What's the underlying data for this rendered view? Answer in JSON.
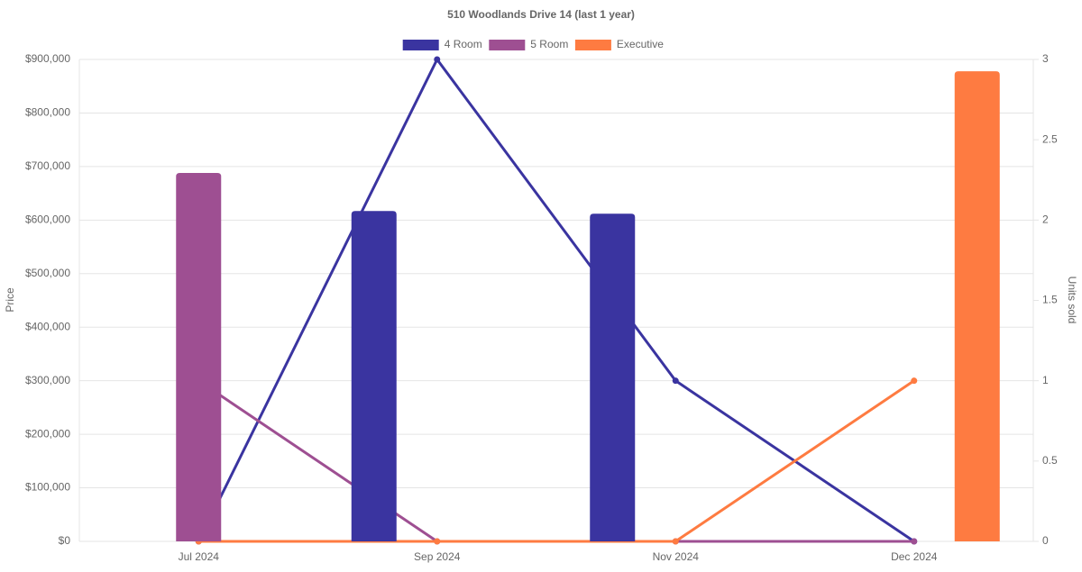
{
  "chart_data": {
    "type": "bar",
    "title": "510 Woodlands Drive 14 (last 1 year)",
    "categories": [
      "Jul 2024",
      "Sep 2024",
      "Nov 2024",
      "Dec 2024"
    ],
    "series": [
      {
        "name": "4 Room",
        "color": "#3a34a0",
        "values": [
          null,
          617000,
          612000,
          null
        ],
        "units": [
          0,
          3,
          1,
          0
        ]
      },
      {
        "name": "5 Room",
        "color": "#9e4f92",
        "values": [
          688000,
          null,
          null,
          null
        ],
        "units": [
          1,
          0,
          0,
          0
        ]
      },
      {
        "name": "Executive",
        "color": "#fe7b41",
        "values": [
          null,
          null,
          null,
          878000
        ],
        "units": [
          0,
          0,
          0,
          1
        ]
      }
    ],
    "y_label": "Price",
    "y2_label": "Units sold",
    "ylim": [
      0,
      900000
    ],
    "yticks": [
      {
        "value": 0,
        "label": "$0"
      },
      {
        "value": 100000,
        "label": "$100,000"
      },
      {
        "value": 200000,
        "label": "$200,000"
      },
      {
        "value": 300000,
        "label": "$300,000"
      },
      {
        "value": 400000,
        "label": "$400,000"
      },
      {
        "value": 500000,
        "label": "$500,000"
      },
      {
        "value": 600000,
        "label": "$600,000"
      },
      {
        "value": 700000,
        "label": "$700,000"
      },
      {
        "value": 800000,
        "label": "$800,000"
      },
      {
        "value": 900000,
        "label": "$900,000"
      }
    ],
    "y2lim": [
      0,
      3
    ],
    "y2ticks": [
      0,
      0.5,
      1,
      1.5,
      2,
      2.5,
      3
    ],
    "grid": true,
    "legend": "top"
  }
}
